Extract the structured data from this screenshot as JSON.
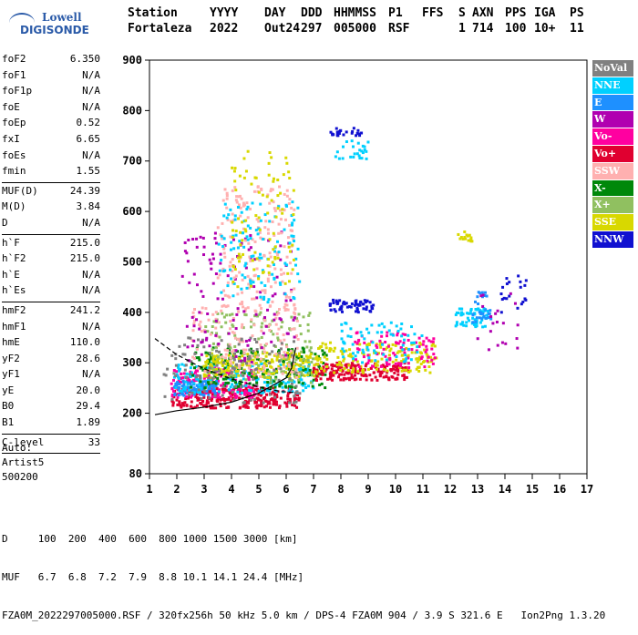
{
  "logo": {
    "line1": "Lowell",
    "line2": "DIGISONDE"
  },
  "header": {
    "row1": [
      "Station",
      "YYYY",
      "DAY",
      "DDD",
      "HHMMSS",
      "P1",
      "FFS",
      "S",
      "AXN",
      "PPS",
      "IGA",
      "PS"
    ],
    "row2": [
      "Fortaleza",
      "2022",
      "Out24",
      "297",
      "005000",
      "RSF",
      "",
      "1",
      "714",
      "100",
      "10+",
      "11"
    ]
  },
  "params": [
    {
      "group": [
        {
          "name": "foF2",
          "value": "6.350"
        },
        {
          "name": "foF1",
          "value": "N/A"
        },
        {
          "name": "foF1p",
          "value": "N/A"
        },
        {
          "name": "foE",
          "value": "N/A"
        },
        {
          "name": "foEp",
          "value": "0.52"
        },
        {
          "name": "fxI",
          "value": "6.65"
        },
        {
          "name": "foEs",
          "value": "N/A"
        },
        {
          "name": "fmin",
          "value": "1.55"
        }
      ]
    },
    {
      "group": [
        {
          "name": "MUF(D)",
          "value": "24.39"
        },
        {
          "name": "M(D)",
          "value": "3.84"
        },
        {
          "name": "D",
          "value": "N/A"
        }
      ]
    },
    {
      "group": [
        {
          "name": "h`F",
          "value": "215.0"
        },
        {
          "name": "h`F2",
          "value": "215.0"
        },
        {
          "name": "h`E",
          "value": "N/A"
        },
        {
          "name": "h`Es",
          "value": "N/A"
        }
      ]
    },
    {
      "group": [
        {
          "name": "hmF2",
          "value": "241.2"
        },
        {
          "name": "hmF1",
          "value": "N/A"
        },
        {
          "name": "hmE",
          "value": "110.0"
        },
        {
          "name": "yF2",
          "value": "28.6"
        },
        {
          "name": "yF1",
          "value": "N/A"
        },
        {
          "name": "yE",
          "value": "20.0"
        },
        {
          "name": "B0",
          "value": "29.4"
        },
        {
          "name": "B1",
          "value": "1.89"
        }
      ]
    },
    {
      "group": [
        {
          "name": "C-level",
          "value": "33"
        }
      ]
    }
  ],
  "auto": {
    "line1": "Auto:",
    "line2": "Artist5",
    "line3": "500200"
  },
  "legend": [
    {
      "label": "NoVal",
      "color": "#808080"
    },
    {
      "label": "NNE",
      "color": "#00d0ff"
    },
    {
      "label": "E",
      "color": "#1e90ff"
    },
    {
      "label": "W",
      "color": "#b000b0"
    },
    {
      "label": "Vo-",
      "color": "#ff00a0"
    },
    {
      "label": "Vo+",
      "color": "#e00030"
    },
    {
      "label": "SSW",
      "color": "#ffb0b0"
    },
    {
      "label": "X-",
      "color": "#00880a"
    },
    {
      "label": "X+",
      "color": "#90c060"
    },
    {
      "label": "SSE",
      "color": "#d8d800"
    },
    {
      "label": "NNW",
      "color": "#1010d0"
    }
  ],
  "footer": {
    "row1": "D     100  200  400  600  800 1000 1500 3000 [km]",
    "row2": "MUF   6.7  6.8  7.2  7.9  8.8 10.1 14.1 24.4 [MHz]",
    "row3": "FZA0M_2022297005000.RSF / 320fx256h 50 kHz 5.0 km / DPS-4 FZA0M 904 / 3.9 S 321.6 E   Ion2Png 1.3.20"
  },
  "chart_data": {
    "type": "scatter",
    "xlim": [
      1,
      17
    ],
    "ylim": [
      80,
      900
    ],
    "x_ticks": [
      1,
      2,
      3,
      4,
      5,
      6,
      7,
      8,
      9,
      10,
      11,
      12,
      13,
      14,
      15,
      16,
      17
    ],
    "y_ticks": [
      80,
      200,
      300,
      400,
      500,
      600,
      700,
      800,
      900
    ],
    "grid": false,
    "legend_position": "right",
    "trace_curve": {
      "x": [
        1.2,
        2.0,
        3.0,
        4.0,
        5.0,
        5.5,
        6.0,
        6.2,
        6.35
      ],
      "y": [
        197,
        205,
        212,
        222,
        240,
        255,
        270,
        290,
        330
      ]
    },
    "profile_curve": {
      "x": [
        1.2,
        2.0,
        3.0,
        4.0,
        5.0,
        5.8,
        6.35
      ],
      "y": [
        348,
        316,
        288,
        268,
        252,
        243,
        241
      ]
    },
    "clusters": [
      {
        "color": "#e00030",
        "x": [
          1.8,
          6.5
        ],
        "y": [
          210,
          250
        ],
        "n": 260
      },
      {
        "color": "#ff00a0",
        "x": [
          1.8,
          5.0
        ],
        "y": [
          230,
          290
        ],
        "n": 160
      },
      {
        "color": "#1e90ff",
        "x": [
          1.9,
          3.5
        ],
        "y": [
          235,
          265
        ],
        "n": 90
      },
      {
        "color": "#00d0ff",
        "x": [
          1.9,
          7.0
        ],
        "y": [
          240,
          300
        ],
        "n": 180
      },
      {
        "color": "#00880a",
        "x": [
          2.5,
          7.5
        ],
        "y": [
          250,
          330
        ],
        "n": 200
      },
      {
        "color": "#d8d800",
        "x": [
          3.0,
          7.2
        ],
        "y": [
          270,
          320
        ],
        "n": 190
      },
      {
        "color": "#90c060",
        "x": [
          3.0,
          7.0
        ],
        "y": [
          260,
          400
        ],
        "n": 140
      },
      {
        "color": "#ffb0b0",
        "x": [
          2.5,
          6.5
        ],
        "y": [
          270,
          420
        ],
        "n": 140
      },
      {
        "color": "#808080",
        "x": [
          1.5,
          6.5
        ],
        "y": [
          220,
          350
        ],
        "n": 120
      },
      {
        "color": "#b000b0",
        "x": [
          2.2,
          6.4
        ],
        "y": [
          300,
          560
        ],
        "n": 120
      },
      {
        "color": "#ffb0b0",
        "x": [
          3.5,
          6.3
        ],
        "y": [
          400,
          650
        ],
        "n": 180
      },
      {
        "color": "#00d0ff",
        "x": [
          3.5,
          6.5
        ],
        "y": [
          420,
          620
        ],
        "n": 110
      },
      {
        "color": "#d8d800",
        "x": [
          4.0,
          6.3
        ],
        "y": [
          450,
          720
        ],
        "n": 90
      },
      {
        "color": "#1010d0",
        "x": [
          7.6,
          9.2
        ],
        "y": [
          400,
          425
        ],
        "n": 60
      },
      {
        "color": "#1010d0",
        "x": [
          7.6,
          8.8
        ],
        "y": [
          750,
          765
        ],
        "n": 25
      },
      {
        "color": "#00d0ff",
        "x": [
          7.8,
          9.0
        ],
        "y": [
          700,
          740
        ],
        "n": 25
      },
      {
        "color": "#e00030",
        "x": [
          7.0,
          10.5
        ],
        "y": [
          265,
          300
        ],
        "n": 180
      },
      {
        "color": "#d8d800",
        "x": [
          7.0,
          11.5
        ],
        "y": [
          280,
          340
        ],
        "n": 160
      },
      {
        "color": "#ff00a0",
        "x": [
          8.5,
          11.5
        ],
        "y": [
          290,
          360
        ],
        "n": 90
      },
      {
        "color": "#00d0ff",
        "x": [
          8.0,
          11.0
        ],
        "y": [
          300,
          380
        ],
        "n": 70
      },
      {
        "color": "#00d0ff",
        "x": [
          12.2,
          13.4
        ],
        "y": [
          370,
          410
        ],
        "n": 60
      },
      {
        "color": "#1e90ff",
        "x": [
          12.8,
          13.5
        ],
        "y": [
          380,
          440
        ],
        "n": 30
      },
      {
        "color": "#d8d800",
        "x": [
          12.2,
          12.8
        ],
        "y": [
          540,
          560
        ],
        "n": 15
      },
      {
        "color": "#1010d0",
        "x": [
          13.8,
          14.8
        ],
        "y": [
          400,
          480
        ],
        "n": 20
      },
      {
        "color": "#b000b0",
        "x": [
          13.0,
          14.5
        ],
        "y": [
          320,
          440
        ],
        "n": 20
      }
    ]
  }
}
